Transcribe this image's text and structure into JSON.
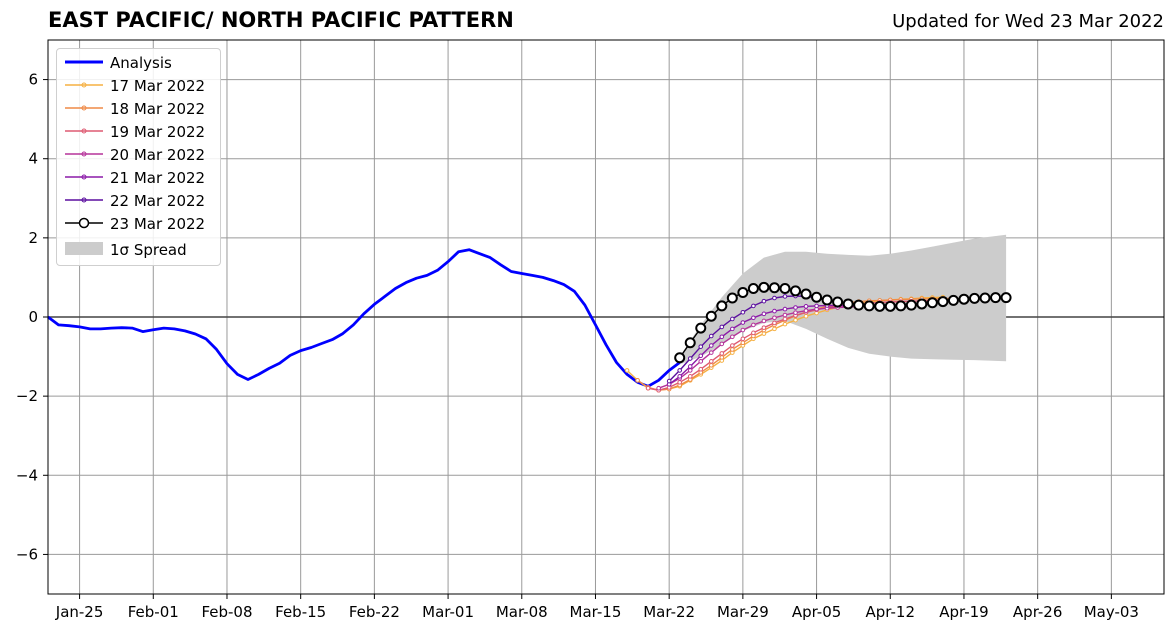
{
  "header": {
    "title": "EAST PACIFIC/ NORTH PACIFIC PATTERN",
    "updated": "Updated for Wed 23 Mar 2022"
  },
  "chart_data": {
    "type": "line",
    "x_axis": {
      "ticks": [
        "Jan-25",
        "Feb-01",
        "Feb-08",
        "Feb-15",
        "Feb-22",
        "Mar-01",
        "Mar-08",
        "Mar-15",
        "Mar-22",
        "Mar-29",
        "Apr-05",
        "Apr-12",
        "Apr-19",
        "Apr-26",
        "May-03"
      ],
      "range": [
        "2022-01-22",
        "2022-05-08"
      ]
    },
    "y_axis": {
      "ticks": [
        "6",
        "4",
        "2",
        "0",
        "−2",
        "−4",
        "−6"
      ],
      "tick_values": [
        6,
        4,
        2,
        0,
        -2,
        -4,
        -6
      ],
      "range": [
        -7,
        7
      ]
    },
    "grid": true,
    "legend_placement": "top-left",
    "series": [
      {
        "name": "Analysis",
        "color": "#0000ff",
        "style": "thick-line",
        "x": [
          "2022-01-22",
          "2022-01-23",
          "2022-01-24",
          "2022-01-25",
          "2022-01-26",
          "2022-01-27",
          "2022-01-28",
          "2022-01-29",
          "2022-01-30",
          "2022-01-31",
          "2022-02-01",
          "2022-02-02",
          "2022-02-03",
          "2022-02-04",
          "2022-02-05",
          "2022-02-06",
          "2022-02-07",
          "2022-02-08",
          "2022-02-09",
          "2022-02-10",
          "2022-02-11",
          "2022-02-12",
          "2022-02-13",
          "2022-02-14",
          "2022-02-15",
          "2022-02-16",
          "2022-02-17",
          "2022-02-18",
          "2022-02-19",
          "2022-02-20",
          "2022-02-21",
          "2022-02-22",
          "2022-02-23",
          "2022-02-24",
          "2022-02-25",
          "2022-02-26",
          "2022-02-27",
          "2022-02-28",
          "2022-03-01",
          "2022-03-02",
          "2022-03-03",
          "2022-03-04",
          "2022-03-05",
          "2022-03-06",
          "2022-03-07",
          "2022-03-08",
          "2022-03-09",
          "2022-03-10",
          "2022-03-11",
          "2022-03-12",
          "2022-03-13",
          "2022-03-14",
          "2022-03-15",
          "2022-03-16",
          "2022-03-17",
          "2022-03-18",
          "2022-03-19",
          "2022-03-20",
          "2022-03-21",
          "2022-03-22",
          "2022-03-23"
        ],
        "values": [
          0.0,
          -0.2,
          -0.22,
          -0.25,
          -0.3,
          -0.3,
          -0.28,
          -0.27,
          -0.28,
          -0.37,
          -0.32,
          -0.28,
          -0.3,
          -0.35,
          -0.43,
          -0.55,
          -0.82,
          -1.18,
          -1.45,
          -1.58,
          -1.45,
          -1.3,
          -1.17,
          -0.97,
          -0.85,
          -0.77,
          -0.67,
          -0.57,
          -0.42,
          -0.2,
          0.08,
          0.32,
          0.52,
          0.72,
          0.87,
          0.98,
          1.05,
          1.18,
          1.4,
          1.65,
          1.7,
          1.6,
          1.5,
          1.32,
          1.15,
          1.1,
          1.05,
          1.0,
          0.92,
          0.82,
          0.65,
          0.3,
          -0.2,
          -0.7,
          -1.15,
          -1.45,
          -1.65,
          -1.75,
          -1.6,
          -1.35,
          -1.15
        ]
      },
      {
        "name": "17 Mar 2022",
        "color": "#f5b042",
        "x": [
          "2022-03-18",
          "2022-03-19",
          "2022-03-20",
          "2022-03-21",
          "2022-03-22",
          "2022-03-23",
          "2022-03-24",
          "2022-03-25",
          "2022-03-26",
          "2022-03-27",
          "2022-03-28",
          "2022-03-29",
          "2022-03-30",
          "2022-03-31",
          "2022-04-01",
          "2022-04-02",
          "2022-04-03",
          "2022-04-04",
          "2022-04-05",
          "2022-04-06",
          "2022-04-07",
          "2022-04-08",
          "2022-04-09",
          "2022-04-10",
          "2022-04-11",
          "2022-04-12",
          "2022-04-13",
          "2022-04-14",
          "2022-04-15",
          "2022-04-16",
          "2022-04-17"
        ],
        "values": [
          -1.35,
          -1.6,
          -1.8,
          -1.85,
          -1.82,
          -1.75,
          -1.6,
          -1.45,
          -1.28,
          -1.1,
          -0.9,
          -0.72,
          -0.55,
          -0.42,
          -0.3,
          -0.18,
          -0.08,
          0.02,
          0.1,
          0.18,
          0.24,
          0.3,
          0.34,
          0.38,
          0.41,
          0.43,
          0.45,
          0.46,
          0.48,
          0.49,
          0.5
        ]
      },
      {
        "name": "18 Mar 2022",
        "color": "#ef8a47",
        "x": [
          "2022-03-19",
          "2022-03-20",
          "2022-03-21",
          "2022-03-22",
          "2022-03-23",
          "2022-03-24",
          "2022-03-25",
          "2022-03-26",
          "2022-03-27",
          "2022-03-28",
          "2022-03-29",
          "2022-03-30",
          "2022-03-31",
          "2022-04-01",
          "2022-04-02",
          "2022-04-03",
          "2022-04-04",
          "2022-04-05",
          "2022-04-06",
          "2022-04-07",
          "2022-04-08",
          "2022-04-09",
          "2022-04-10",
          "2022-04-11",
          "2022-04-12",
          "2022-04-13",
          "2022-04-14",
          "2022-04-15",
          "2022-04-16",
          "2022-04-17",
          "2022-04-18"
        ],
        "values": [
          -1.6,
          -1.78,
          -1.85,
          -1.82,
          -1.72,
          -1.58,
          -1.4,
          -1.22,
          -1.02,
          -0.82,
          -0.65,
          -0.48,
          -0.33,
          -0.2,
          -0.08,
          0.03,
          0.12,
          0.2,
          0.27,
          0.32,
          0.36,
          0.39,
          0.41,
          0.42,
          0.43,
          0.44,
          0.45,
          0.46,
          0.46,
          0.47,
          0.47
        ]
      },
      {
        "name": "19 Mar 2022",
        "color": "#de5a72",
        "x": [
          "2022-03-20",
          "2022-03-21",
          "2022-03-22",
          "2022-03-23",
          "2022-03-24",
          "2022-03-25",
          "2022-03-26",
          "2022-03-27",
          "2022-03-28",
          "2022-03-29",
          "2022-03-30",
          "2022-03-31",
          "2022-04-01",
          "2022-04-02",
          "2022-04-03",
          "2022-04-04",
          "2022-04-05",
          "2022-04-06",
          "2022-04-07",
          "2022-04-08",
          "2022-04-09",
          "2022-04-10",
          "2022-04-11",
          "2022-04-12",
          "2022-04-13",
          "2022-04-14",
          "2022-04-15",
          "2022-04-16",
          "2022-04-17",
          "2022-04-18"
        ],
        "values": [
          -1.8,
          -1.85,
          -1.78,
          -1.65,
          -1.5,
          -1.32,
          -1.12,
          -0.92,
          -0.72,
          -0.55,
          -0.4,
          -0.27,
          -0.15,
          -0.05,
          0.04,
          0.12,
          0.18,
          0.24,
          0.28,
          0.31,
          0.33,
          0.35,
          0.37,
          0.38,
          0.39,
          0.4,
          0.41,
          0.42,
          0.42,
          0.43
        ]
      },
      {
        "name": "20 Mar 2022",
        "color": "#b5339a",
        "x": [
          "2022-03-21",
          "2022-03-22",
          "2022-03-23",
          "2022-03-24",
          "2022-03-25",
          "2022-03-26",
          "2022-03-27",
          "2022-03-28",
          "2022-03-29",
          "2022-03-30",
          "2022-03-31",
          "2022-04-01",
          "2022-04-02",
          "2022-04-03",
          "2022-04-04",
          "2022-04-05",
          "2022-04-06",
          "2022-04-07",
          "2022-04-08",
          "2022-04-09"
        ],
        "values": [
          -1.8,
          -1.7,
          -1.55,
          -1.35,
          -1.12,
          -0.9,
          -0.68,
          -0.5,
          -0.33,
          -0.2,
          -0.1,
          -0.02,
          0.05,
          0.11,
          0.16,
          0.2,
          0.22,
          0.24,
          0.25,
          0.26
        ]
      },
      {
        "name": "21 Mar 2022",
        "color": "#8b1aa8",
        "x": [
          "2022-03-22",
          "2022-03-23",
          "2022-03-24",
          "2022-03-25",
          "2022-03-26",
          "2022-03-27",
          "2022-03-28",
          "2022-03-29",
          "2022-03-30",
          "2022-03-31",
          "2022-04-01",
          "2022-04-02",
          "2022-04-03",
          "2022-04-04",
          "2022-04-05",
          "2022-04-06",
          "2022-04-07",
          "2022-04-08",
          "2022-04-09",
          "2022-04-10"
        ],
        "values": [
          -1.7,
          -1.5,
          -1.25,
          -0.98,
          -0.72,
          -0.5,
          -0.3,
          -0.14,
          -0.02,
          0.08,
          0.15,
          0.2,
          0.24,
          0.27,
          0.28,
          0.29,
          0.29,
          0.28,
          0.28,
          0.28
        ]
      },
      {
        "name": "22 Mar 2022",
        "color": "#5b0f9f",
        "x": [
          "2022-03-22",
          "2022-03-23",
          "2022-03-24",
          "2022-03-25",
          "2022-03-26",
          "2022-03-27",
          "2022-03-28",
          "2022-03-29",
          "2022-03-30",
          "2022-03-31",
          "2022-04-01",
          "2022-04-02",
          "2022-04-03",
          "2022-04-04",
          "2022-04-05",
          "2022-04-06",
          "2022-04-07",
          "2022-04-08",
          "2022-04-09",
          "2022-04-10"
        ],
        "values": [
          -1.62,
          -1.35,
          -1.05,
          -0.75,
          -0.48,
          -0.25,
          -0.05,
          0.12,
          0.28,
          0.4,
          0.48,
          0.52,
          0.53,
          0.52,
          0.48,
          0.42,
          0.36,
          0.32,
          0.29,
          0.28
        ]
      },
      {
        "name": "23 Mar 2022",
        "color": "#000000",
        "style": "open-circle-markers",
        "x": [
          "2022-03-23",
          "2022-03-24",
          "2022-03-25",
          "2022-03-26",
          "2022-03-27",
          "2022-03-28",
          "2022-03-29",
          "2022-03-30",
          "2022-03-31",
          "2022-04-01",
          "2022-04-02",
          "2022-04-03",
          "2022-04-04",
          "2022-04-05",
          "2022-04-06",
          "2022-04-07",
          "2022-04-08",
          "2022-04-09",
          "2022-04-10",
          "2022-04-11",
          "2022-04-12",
          "2022-04-13",
          "2022-04-14",
          "2022-04-15",
          "2022-04-16",
          "2022-04-17",
          "2022-04-18",
          "2022-04-19",
          "2022-04-20",
          "2022-04-21",
          "2022-04-22",
          "2022-04-23"
        ],
        "values": [
          -1.03,
          -0.65,
          -0.28,
          0.02,
          0.28,
          0.48,
          0.62,
          0.72,
          0.75,
          0.74,
          0.72,
          0.66,
          0.58,
          0.5,
          0.43,
          0.38,
          0.33,
          0.3,
          0.28,
          0.27,
          0.27,
          0.28,
          0.3,
          0.33,
          0.36,
          0.39,
          0.42,
          0.45,
          0.47,
          0.48,
          0.49,
          0.49
        ]
      }
    ],
    "spread": {
      "name": "1σ Spread",
      "color": "#cccccc",
      "x": [
        "2022-03-23",
        "2022-03-25",
        "2022-03-27",
        "2022-03-29",
        "2022-03-31",
        "2022-04-02",
        "2022-04-04",
        "2022-04-06",
        "2022-04-08",
        "2022-04-10",
        "2022-04-12",
        "2022-04-14",
        "2022-04-16",
        "2022-04-18",
        "2022-04-20",
        "2022-04-23"
      ],
      "upper": [
        -1.0,
        -0.2,
        0.5,
        1.1,
        1.5,
        1.65,
        1.65,
        1.6,
        1.57,
        1.55,
        1.6,
        1.68,
        1.78,
        1.88,
        1.98,
        2.08
      ],
      "lower": [
        -1.2,
        -1.0,
        -0.7,
        -0.35,
        -0.15,
        -0.1,
        -0.3,
        -0.55,
        -0.78,
        -0.93,
        -1.0,
        -1.05,
        -1.07,
        -1.08,
        -1.09,
        -1.12
      ]
    }
  }
}
